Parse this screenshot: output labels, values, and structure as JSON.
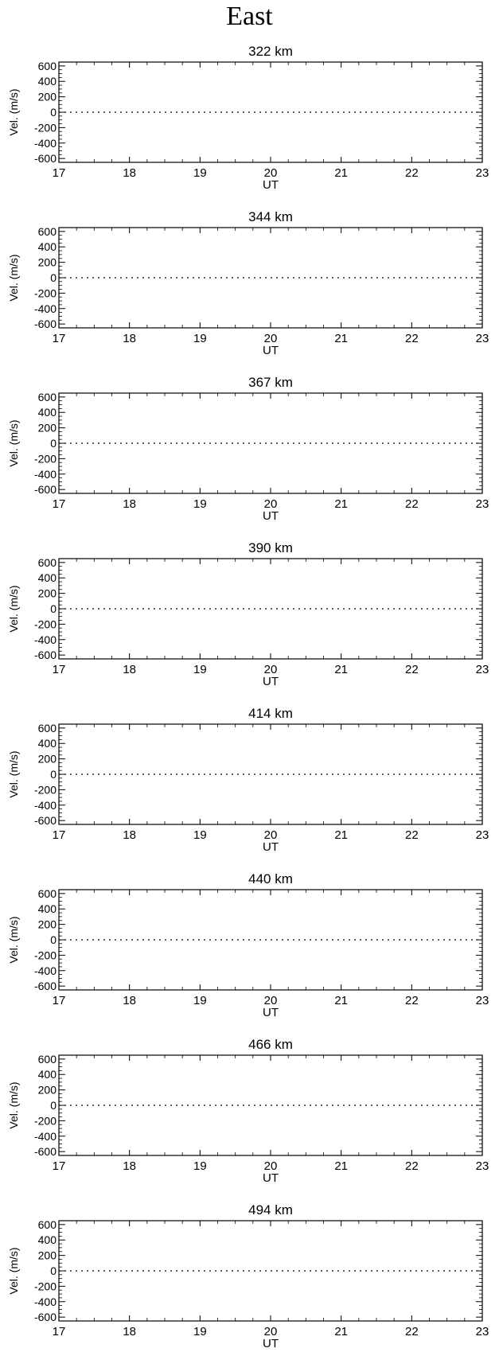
{
  "figure": {
    "title": "East"
  },
  "chart_data": [
    {
      "type": "line",
      "title": "322 km",
      "xlabel": "UT",
      "ylabel": "Vel. (m/s)",
      "xlim": [
        17,
        23
      ],
      "ylim": [
        -650,
        650
      ],
      "xticks": [
        17,
        18,
        19,
        20,
        21,
        22,
        23
      ],
      "yticks": [
        600,
        400,
        200,
        0,
        -200,
        -400,
        -600
      ],
      "series": [
        {
          "x": [
            17,
            23
          ],
          "y": [
            0,
            0
          ],
          "style": "dotted"
        }
      ]
    },
    {
      "type": "line",
      "title": "344 km",
      "xlabel": "UT",
      "ylabel": "Vel. (m/s)",
      "xlim": [
        17,
        23
      ],
      "ylim": [
        -650,
        650
      ],
      "xticks": [
        17,
        18,
        19,
        20,
        21,
        22,
        23
      ],
      "yticks": [
        600,
        400,
        200,
        0,
        -200,
        -400,
        -600
      ],
      "series": [
        {
          "x": [
            17,
            23
          ],
          "y": [
            0,
            0
          ],
          "style": "dotted"
        }
      ]
    },
    {
      "type": "line",
      "title": "367 km",
      "xlabel": "UT",
      "ylabel": "Vel. (m/s)",
      "xlim": [
        17,
        23
      ],
      "ylim": [
        -650,
        650
      ],
      "xticks": [
        17,
        18,
        19,
        20,
        21,
        22,
        23
      ],
      "yticks": [
        600,
        400,
        200,
        0,
        -200,
        -400,
        -600
      ],
      "series": [
        {
          "x": [
            17,
            23
          ],
          "y": [
            0,
            0
          ],
          "style": "dotted"
        }
      ]
    },
    {
      "type": "line",
      "title": "390 km",
      "xlabel": "UT",
      "ylabel": "Vel. (m/s)",
      "xlim": [
        17,
        23
      ],
      "ylim": [
        -650,
        650
      ],
      "xticks": [
        17,
        18,
        19,
        20,
        21,
        22,
        23
      ],
      "yticks": [
        600,
        400,
        200,
        0,
        -200,
        -400,
        -600
      ],
      "series": [
        {
          "x": [
            17,
            23
          ],
          "y": [
            0,
            0
          ],
          "style": "dotted"
        }
      ]
    },
    {
      "type": "line",
      "title": "414 km",
      "xlabel": "UT",
      "ylabel": "Vel. (m/s)",
      "xlim": [
        17,
        23
      ],
      "ylim": [
        -650,
        650
      ],
      "xticks": [
        17,
        18,
        19,
        20,
        21,
        22,
        23
      ],
      "yticks": [
        600,
        400,
        200,
        0,
        -200,
        -400,
        -600
      ],
      "series": [
        {
          "x": [
            17,
            23
          ],
          "y": [
            0,
            0
          ],
          "style": "dotted"
        }
      ]
    },
    {
      "type": "line",
      "title": "440 km",
      "xlabel": "UT",
      "ylabel": "Vel. (m/s)",
      "xlim": [
        17,
        23
      ],
      "ylim": [
        -650,
        650
      ],
      "xticks": [
        17,
        18,
        19,
        20,
        21,
        22,
        23
      ],
      "yticks": [
        600,
        400,
        200,
        0,
        -200,
        -400,
        -600
      ],
      "series": [
        {
          "x": [
            17,
            23
          ],
          "y": [
            0,
            0
          ],
          "style": "dotted"
        }
      ]
    },
    {
      "type": "line",
      "title": "466 km",
      "xlabel": "UT",
      "ylabel": "Vel. (m/s)",
      "xlim": [
        17,
        23
      ],
      "ylim": [
        -650,
        650
      ],
      "xticks": [
        17,
        18,
        19,
        20,
        21,
        22,
        23
      ],
      "yticks": [
        600,
        400,
        200,
        0,
        -200,
        -400,
        -600
      ],
      "series": [
        {
          "x": [
            17,
            23
          ],
          "y": [
            0,
            0
          ],
          "style": "dotted"
        }
      ]
    },
    {
      "type": "line",
      "title": "494 km",
      "xlabel": "UT",
      "ylabel": "Vel. (m/s)",
      "xlim": [
        17,
        23
      ],
      "ylim": [
        -650,
        650
      ],
      "xticks": [
        17,
        18,
        19,
        20,
        21,
        22,
        23
      ],
      "yticks": [
        600,
        400,
        200,
        0,
        -200,
        -400,
        -600
      ],
      "series": [
        {
          "x": [
            17,
            23
          ],
          "y": [
            0,
            0
          ],
          "style": "dotted"
        }
      ]
    }
  ]
}
